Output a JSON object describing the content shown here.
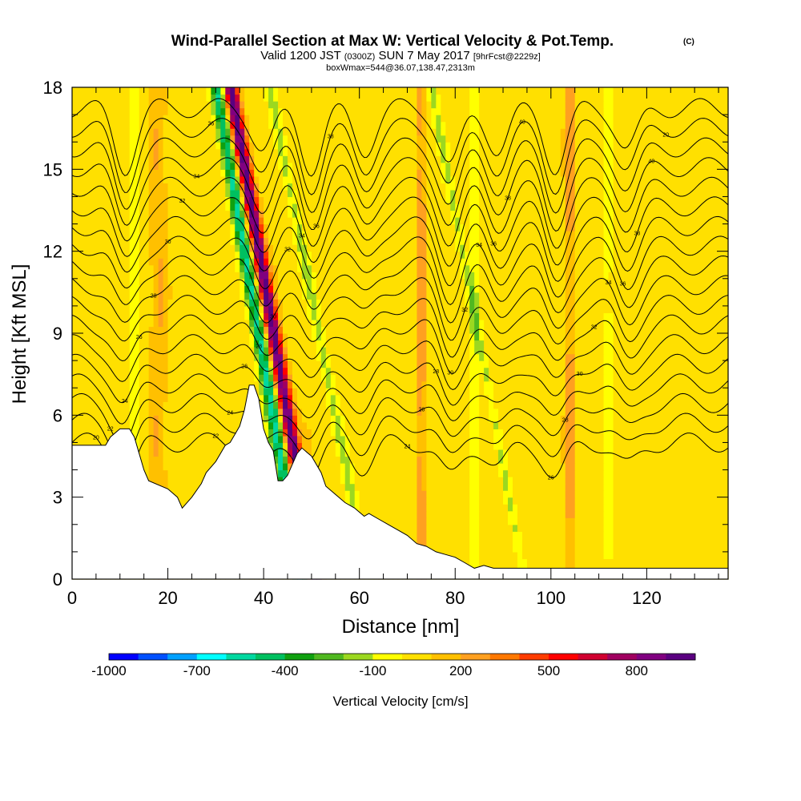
{
  "chart_data": {
    "type": "heatmap",
    "title": "Wind-Parallel Section at Max W: Vertical Velocity & Pot.Temp.",
    "title_mark": "(C)",
    "subtitle_parts": {
      "prefix": "Valid 1200 JST",
      "zulu": "(0300Z)",
      "date": "SUN 7 May 2017",
      "forecast": "[9hrFcst@2229z]"
    },
    "subtitle2": "boxWmax=544@36.07,138.47,2313m",
    "xlabel": "Distance [nm]",
    "ylabel": "Height [Kft MSL]",
    "xlim": [
      0,
      137
    ],
    "ylim": [
      0,
      18
    ],
    "x_ticks": [
      "0",
      "20",
      "40",
      "60",
      "80",
      "100",
      "120"
    ],
    "y_ticks": [
      "0",
      "3",
      "6",
      "9",
      "12",
      "15",
      "18"
    ],
    "x_tick_values": [
      0,
      20,
      40,
      60,
      80,
      100,
      120
    ],
    "y_tick_values": [
      0,
      3,
      6,
      9,
      12,
      15,
      18
    ],
    "colorbar": {
      "label": "Vertical Velocity [cm/s]",
      "tick_labels": [
        "-1000",
        "-700",
        "-400",
        "-100",
        "200",
        "500",
        "800"
      ],
      "levels": [
        -1000,
        -900,
        -800,
        -700,
        -600,
        -500,
        -400,
        -300,
        -200,
        -100,
        0,
        100,
        200,
        300,
        400,
        500,
        600,
        700,
        800,
        900
      ],
      "colors": [
        "#0000ff",
        "#0050ff",
        "#00a0ff",
        "#00ffff",
        "#00d8a0",
        "#00c060",
        "#10a010",
        "#50b820",
        "#9cd820",
        "#ffff00",
        "#ffe000",
        "#ffc000",
        "#ffa020",
        "#ff7800",
        "#ff3c00",
        "#ff0000",
        "#d00030",
        "#a00060",
        "#800080",
        "#5a0080"
      ]
    },
    "terrain": {
      "x": [
        0,
        7,
        8,
        10,
        12,
        13,
        15,
        16,
        20,
        22,
        23,
        25,
        27,
        28,
        30,
        32,
        33,
        34,
        35,
        36,
        37,
        38,
        39,
        40,
        41,
        42,
        43,
        44,
        45,
        46,
        47,
        48,
        50,
        52,
        53,
        55,
        57,
        59,
        61,
        62,
        64,
        66,
        68,
        70,
        72,
        74,
        76,
        78,
        80,
        82,
        84,
        86,
        88,
        90,
        95,
        100,
        110,
        120,
        130,
        137
      ],
      "y": [
        4.9,
        4.9,
        5.2,
        5.5,
        5.5,
        5.2,
        4.0,
        3.6,
        3.3,
        3.0,
        2.6,
        3.0,
        3.5,
        3.9,
        4.3,
        4.9,
        5.0,
        5.3,
        5.6,
        6.2,
        7.1,
        7.1,
        6.6,
        5.5,
        5.0,
        4.7,
        3.6,
        3.6,
        3.8,
        4.2,
        4.6,
        4.8,
        4.5,
        3.9,
        3.4,
        3.1,
        2.8,
        2.6,
        2.3,
        2.4,
        2.2,
        2.0,
        1.8,
        1.6,
        1.3,
        1.2,
        1.0,
        0.9,
        0.8,
        0.6,
        0.4,
        0.5,
        0.4,
        0.4,
        0.4,
        0.4,
        0.4,
        0.4,
        0.4,
        0.4
      ]
    },
    "velocity_bands": [
      {
        "x0": 45,
        "tilt": -0.33,
        "width": 1.4,
        "amp": 900
      },
      {
        "x0": 42,
        "tilt": -0.33,
        "width": 1.4,
        "amp": -600
      },
      {
        "x0": 55,
        "tilt": -0.38,
        "width": 1.1,
        "amp": -180
      },
      {
        "x0": 88,
        "tilt": -0.36,
        "width": 0.9,
        "amp": -180
      },
      {
        "x0": 13,
        "tilt": 0.0,
        "width": 0.9,
        "amp": -140
      },
      {
        "x0": 73,
        "tilt": 0.0,
        "width": 0.8,
        "amp": 220
      },
      {
        "x0": 104,
        "tilt": 0.0,
        "width": 0.8,
        "amp": 220
      },
      {
        "x0": 112,
        "tilt": 0.0,
        "width": 0.7,
        "amp": -160
      },
      {
        "x0": 18,
        "tilt": 0.0,
        "width": 1.5,
        "amp": 150
      },
      {
        "x0": 84,
        "tilt": 0.0,
        "width": 0.8,
        "amp": -150
      }
    ],
    "theta_contours": {
      "count": 18,
      "base_height": 5.0,
      "spacing": 0.72,
      "wave_centers": [
        11,
        40,
        50,
        61,
        79,
        89,
        101,
        116
      ],
      "wave_amplitude_kft": 2.2
    },
    "contour_labels": [
      "20",
      "22",
      "24",
      "26",
      "28",
      "30",
      "32",
      "34",
      "36",
      "38",
      "40"
    ]
  }
}
